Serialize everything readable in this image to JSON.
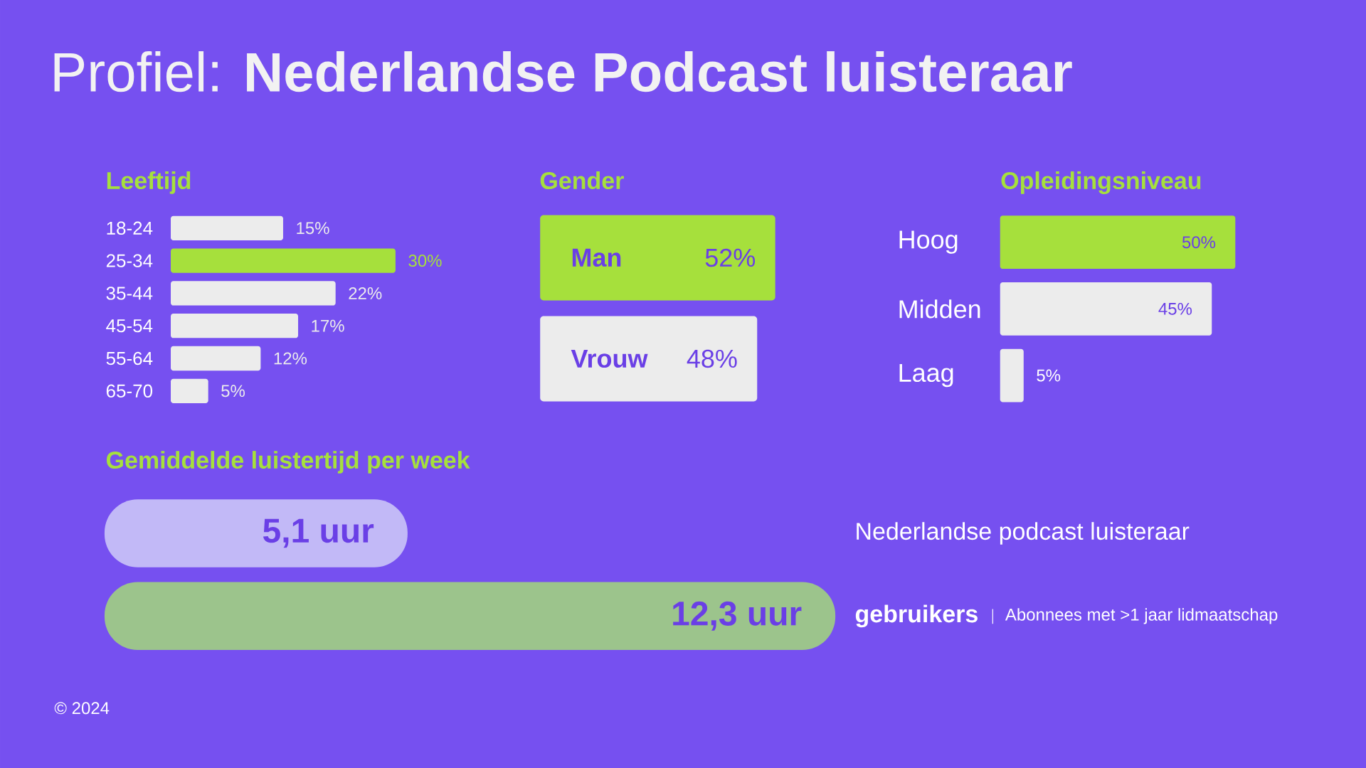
{
  "chart_data": [
    {
      "type": "bar",
      "orientation": "horizontal",
      "title": "Profiel: **Nederlandse Podcast luisteraar**",
      "subtitle": "Leeftijd",
      "categories": [
        "18-24",
        "25-34",
        "35-44",
        "45-54",
        "55-64",
        "65-70"
      ],
      "values": [
        15,
        30,
        22,
        17,
        12,
        5
      ],
      "colors": [
        "#ececec",
        "#a6e03c",
        "#ececec",
        "#ececec",
        "#ececec",
        "#ececec"
      ],
      "value_labels": [
        "15%",
        "30%",
        "22%",
        "17%",
        "12%",
        "5%"
      ]
    },
    {
      "type": "bar",
      "orientation": "horizontal",
      "title": "Gender",
      "categories": [
        "Man",
        "Vrouw"
      ],
      "values": [
        52,
        48
      ],
      "colors": [
        "#a6e03c",
        "#ececec"
      ],
      "value_labels": [
        "52%",
        "48%"
      ]
    },
    {
      "type": "bar",
      "orientation": "horizontal",
      "title": "Opleidingsniveau",
      "categories": [
        "Hoog",
        "Midden",
        "Laag"
      ],
      "values": [
        50,
        45,
        5
      ],
      "colors": [
        "#a6e03c",
        "#ececec",
        "#ececec"
      ],
      "value_labels": [
        "50%",
        "45%",
        "5%"
      ]
    },
    {
      "type": "bar",
      "orientation": "horizontal",
      "title": "Gemiddelde luistertijd per week",
      "categories": [
        "Nederlandse podcast luisteraar",
        "**gebruikers**"
      ],
      "values": [
        5.1,
        12.3
      ],
      "colors": [
        "#c2b9f7",
        "#9cc48c"
      ],
      "value_labels": [
        "5,1 uur",
        "12,3 uur"
      ],
      "annotations": [
        "Abonnees met >1 jaar lidmaatschap",
        "© 2024"
      ]
    }
  ]
}
